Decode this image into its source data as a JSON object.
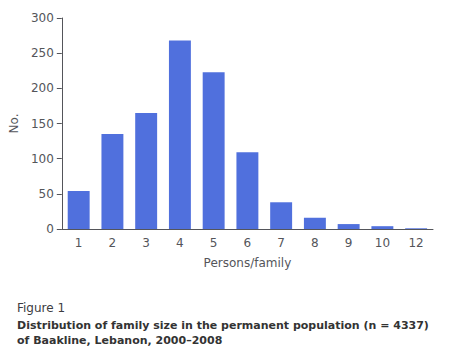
{
  "chart_data": {
    "type": "bar",
    "title": "Figure 1",
    "subtitle": "Distribution of family size in the permanent population (n = 4337) of Baakline, Lebanon, 2000–2008",
    "categories": [
      1,
      2,
      3,
      4,
      5,
      6,
      7,
      8,
      9,
      10,
      12
    ],
    "values": [
      54,
      135,
      165,
      268,
      223,
      109,
      38,
      16,
      7,
      4,
      1
    ],
    "xlabel": "Persons/family",
    "ylabel": "No.",
    "ylim": [
      0,
      300
    ],
    "yticks": [
      0,
      50,
      100,
      150,
      200,
      250,
      300
    ],
    "grid": false
  }
}
